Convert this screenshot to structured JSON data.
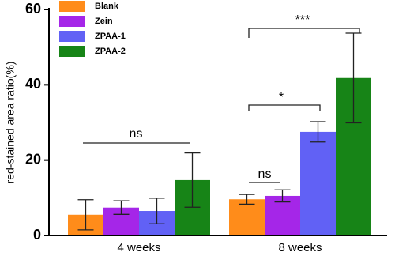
{
  "chart_data": {
    "type": "bar",
    "y_label": "red-stained area ratio(%)",
    "categories": [
      "4 weeks",
      "8 weeks"
    ],
    "series": [
      {
        "name": "Blank",
        "color": "#ff8c1a",
        "values": [
          5.5,
          9.6
        ],
        "errors": [
          4.0,
          1.3
        ]
      },
      {
        "name": "Zein",
        "color": "#a526e8",
        "values": [
          7.4,
          10.5
        ],
        "errors": [
          1.8,
          1.6
        ]
      },
      {
        "name": "ZPAA-1",
        "color": "#6161f5",
        "values": [
          6.5,
          27.5
        ],
        "errors": [
          3.4,
          2.7
        ]
      },
      {
        "name": "ZPAA-2",
        "color": "#178417",
        "values": [
          14.7,
          41.8
        ],
        "errors": [
          7.2,
          11.9
        ]
      }
    ],
    "ylim": [
      0,
      60
    ],
    "yticks": [
      0,
      20,
      40,
      60
    ],
    "annotations": [
      "ns",
      "ns",
      "*",
      "***"
    ]
  }
}
